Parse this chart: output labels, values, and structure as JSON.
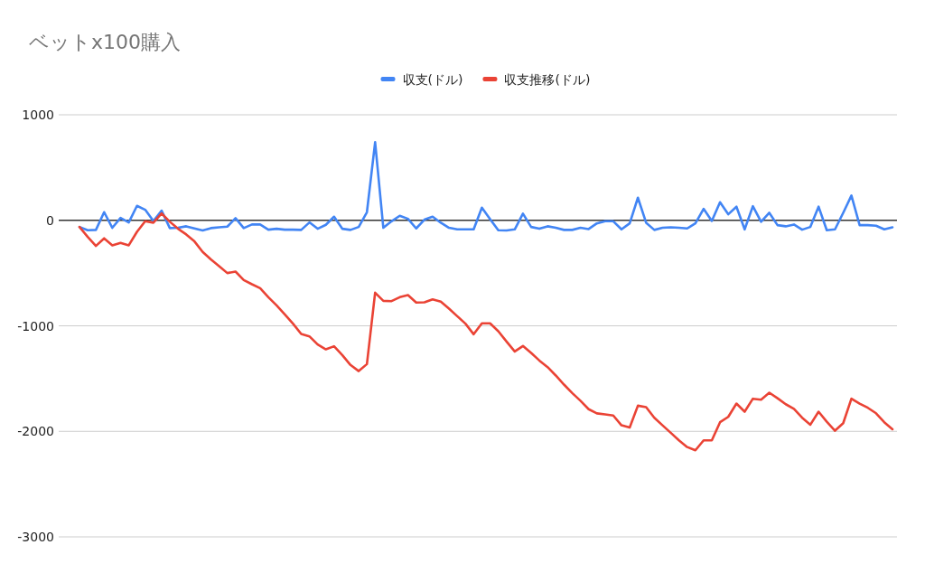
{
  "chart_data": {
    "type": "line",
    "title": "ベットx100購入",
    "categories": [
      null,
      null,
      null,
      null,
      null,
      null,
      null,
      null,
      null,
      null,
      null,
      null,
      null,
      null,
      null,
      null,
      null,
      null,
      null,
      null,
      null,
      null,
      null,
      null,
      null,
      null,
      null,
      null,
      null,
      null,
      null,
      null,
      null,
      null,
      null,
      null,
      null,
      null,
      null,
      null,
      null,
      null,
      null,
      null,
      null,
      null,
      null,
      null,
      null,
      null,
      null,
      null,
      null,
      null,
      null,
      null,
      null,
      null,
      null,
      null,
      null,
      null,
      null,
      null,
      null,
      null,
      null,
      null,
      null,
      null,
      null,
      null,
      null,
      null,
      null,
      null,
      null,
      null,
      null,
      null,
      null,
      null,
      null,
      null,
      null,
      null,
      null,
      null,
      null,
      null,
      null,
      null,
      null,
      null,
      null,
      null,
      null,
      null,
      null,
      null
    ],
    "series": [
      {
        "name": "収支(ドル)",
        "color": "#4285f4",
        "values": [
          -63,
          -94,
          -91,
          77,
          -71,
          23,
          -20,
          137,
          100,
          -6,
          91,
          -74,
          -71,
          -57,
          -77,
          -97,
          -74,
          -66,
          -60,
          20,
          -74,
          -40,
          -40,
          -89,
          -80,
          -89,
          -89,
          -91,
          -20,
          -80,
          -43,
          34,
          -80,
          -91,
          -63,
          77,
          740,
          -71,
          -9,
          43,
          14,
          -77,
          6,
          34,
          -23,
          -71,
          -86,
          -86,
          -86,
          120,
          11,
          -94,
          -97,
          -86,
          63,
          -63,
          -80,
          -57,
          -71,
          -91,
          -91,
          -71,
          -83,
          -29,
          -9,
          -9,
          -86,
          -29,
          214,
          -23,
          -91,
          -71,
          -66,
          -71,
          -77,
          -29,
          109,
          -6,
          171,
          57,
          129,
          -86,
          134,
          -14,
          71,
          -46,
          -57,
          -40,
          -89,
          -63,
          129,
          -94,
          -86,
          71,
          234,
          -46,
          -46,
          -51,
          -86,
          -66
        ]
      },
      {
        "name": "収支推移(ドル)",
        "color": "#ea4335",
        "values": [
          -63,
          -157,
          -243,
          -171,
          -237,
          -214,
          -237,
          -109,
          -9,
          -23,
          66,
          -14,
          -80,
          -134,
          -200,
          -300,
          -371,
          -434,
          -500,
          -486,
          -566,
          -606,
          -643,
          -729,
          -806,
          -891,
          -980,
          -1077,
          -1100,
          -1177,
          -1223,
          -1194,
          -1277,
          -1371,
          -1429,
          -1363,
          -686,
          -763,
          -766,
          -729,
          -709,
          -780,
          -777,
          -749,
          -771,
          -837,
          -909,
          -980,
          -1080,
          -977,
          -977,
          -1051,
          -1149,
          -1243,
          -1191,
          -1257,
          -1329,
          -1391,
          -1471,
          -1557,
          -1637,
          -1710,
          -1790,
          -1830,
          -1840,
          -1850,
          -1943,
          -1963,
          -1757,
          -1771,
          -1871,
          -1943,
          -2014,
          -2086,
          -2149,
          -2180,
          -2086,
          -2086,
          -1914,
          -1863,
          -1737,
          -1814,
          -1691,
          -1700,
          -1634,
          -1686,
          -1743,
          -1786,
          -1871,
          -1937,
          -1814,
          -1909,
          -1994,
          -1923,
          -1691,
          -1737,
          -1777,
          -1829,
          -1914,
          -1980
        ]
      }
    ],
    "ylim": [
      -3000,
      1000
    ],
    "yticks": [
      1000,
      0,
      -1000,
      -2000,
      -3000
    ],
    "grid": "y",
    "legend": "top",
    "marker": "none",
    "line_style": "solid"
  }
}
